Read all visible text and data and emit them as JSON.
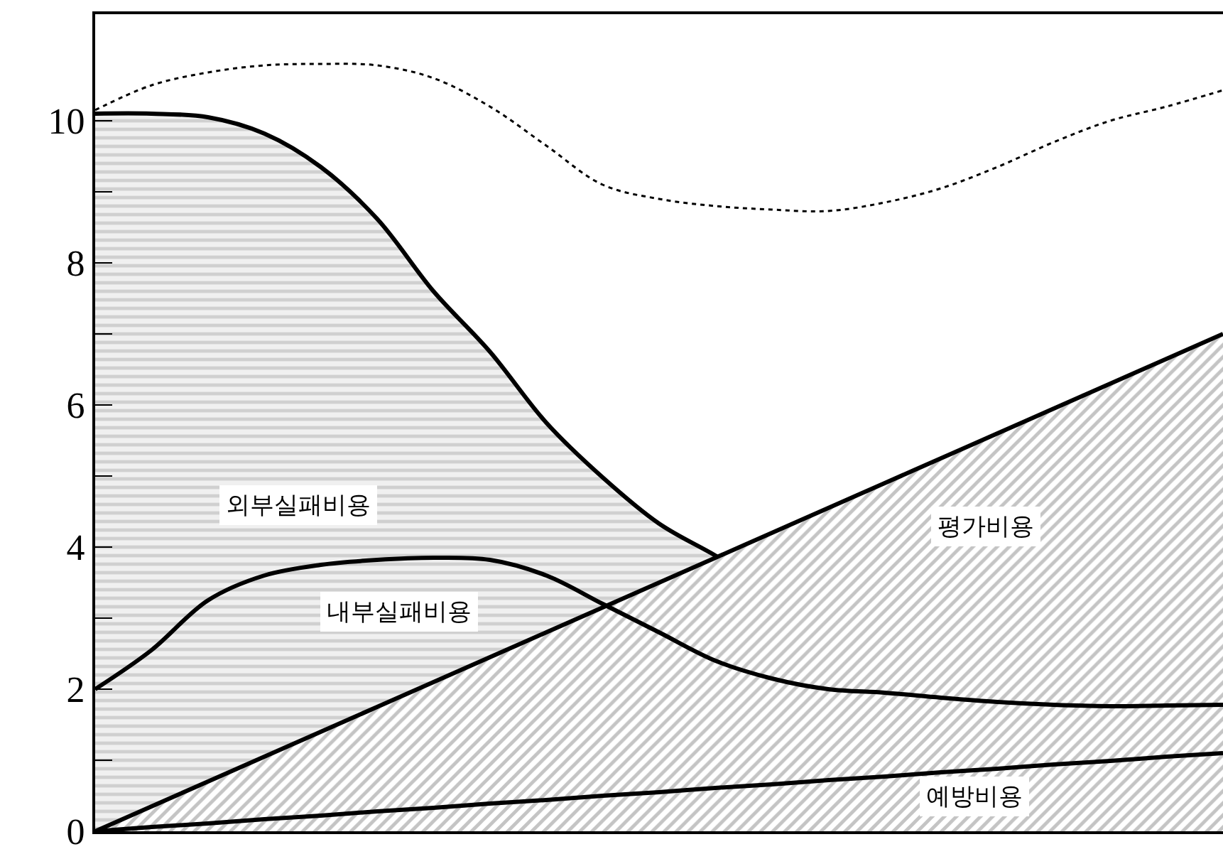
{
  "chart_data": {
    "type": "area",
    "categories": [
      null,
      null,
      null,
      null,
      null,
      null,
      null,
      null,
      null,
      null,
      null,
      null,
      null,
      null,
      null,
      null,
      null,
      null,
      null,
      null,
      null
    ],
    "series": [
      {
        "name": "외부실패비용",
        "color": "#000000",
        "values": [
          10.1,
          10.1,
          10.05,
          9.82,
          9.35,
          8.62,
          7.6,
          6.75,
          5.75,
          4.98,
          4.33,
          3.88,
          3.4,
          3.08,
          2.88,
          2.72,
          2.57,
          2.42,
          2.38,
          2.37,
          2.37
        ]
      },
      {
        "name": "평가비용",
        "type": "area",
        "color": "#000000",
        "values": [
          0,
          0.35,
          0.7,
          1.05,
          1.4,
          1.75,
          2.1,
          2.45,
          2.8,
          3.15,
          3.5,
          3.85,
          4.2,
          4.55,
          4.9,
          5.25,
          5.6,
          5.95,
          6.3,
          6.65,
          7.0
        ]
      },
      {
        "name": "내부실패비용",
        "type": "line",
        "color": "#000000",
        "values": [
          2.0,
          2.55,
          3.25,
          3.6,
          3.75,
          3.82,
          3.85,
          3.82,
          3.6,
          3.2,
          2.8,
          2.4,
          2.15,
          2.0,
          1.95,
          1.88,
          1.82,
          1.78,
          1.76,
          1.77,
          1.78
        ]
      },
      {
        "name": "예방비용",
        "type": "line",
        "color": "#000000",
        "values": [
          0,
          0.06,
          0.11,
          0.17,
          0.22,
          0.28,
          0.33,
          0.39,
          0.44,
          0.5,
          0.55,
          0.61,
          0.66,
          0.72,
          0.77,
          0.83,
          0.88,
          0.94,
          0.99,
          1.05,
          1.1
        ]
      },
      {
        "type": "line",
        "color": "#000000",
        "line_style": "dotted",
        "values": [
          10.15,
          10.5,
          10.68,
          10.78,
          10.8,
          10.78,
          10.6,
          10.2,
          9.65,
          9.1,
          8.9,
          8.8,
          8.75,
          8.73,
          8.85,
          9.05,
          9.35,
          9.7,
          10.0,
          10.2,
          10.43
        ]
      }
    ],
    "ylim": [
      0,
      11.5
    ],
    "yticks": [
      0,
      {
        "value": 1,
        "label": null
      },
      2,
      {
        "value": 3,
        "label": null
      },
      4,
      {
        "value": 5,
        "label": null
      },
      6,
      {
        "value": 7,
        "label": null
      },
      8,
      {
        "value": 9,
        "label": null
      },
      10
    ],
    "tick_labels": "y",
    "legend": false
  }
}
